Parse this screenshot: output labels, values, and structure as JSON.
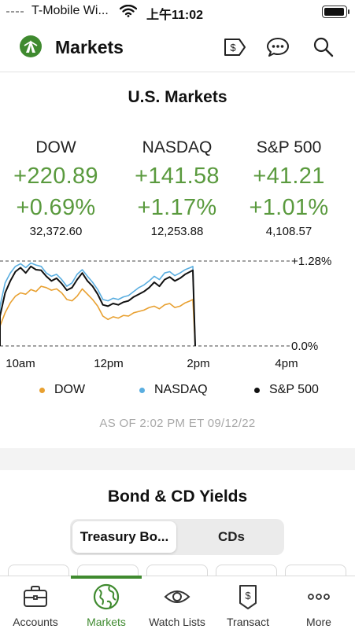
{
  "status_bar": {
    "carrier": "T-Mobile Wi...",
    "time": "上午11:02"
  },
  "header": {
    "title": "Markets",
    "icons": [
      "dollar-tag-icon",
      "chat-bubble-icon",
      "search-icon"
    ]
  },
  "markets": {
    "title": "U.S. Markets",
    "indices": [
      {
        "name": "DOW",
        "change": "+220.89",
        "percent": "+0.69%",
        "value": "32,372.60"
      },
      {
        "name": "NASDAQ",
        "change": "+141.58",
        "percent": "+1.17%",
        "value": "12,253.88"
      },
      {
        "name": "S&P 500",
        "change": "+41.21",
        "percent": "+1.01%",
        "value": "4,108.57"
      }
    ],
    "as_of": "AS OF 2:02 PM ET 09/12/22"
  },
  "chart_data": {
    "type": "line",
    "x_ticks": [
      "10am",
      "12pm",
      "2pm",
      "4pm"
    ],
    "y_labels": [
      "+1.28%",
      "0.0%"
    ],
    "ylim": [
      0,
      1.28
    ],
    "x_range": [
      "9:30am",
      "4pm"
    ],
    "grid": "dashed reference lines at +1.28% and 0.0%",
    "legend": "bottom",
    "series": [
      {
        "name": "DOW",
        "color": "#e8a030",
        "x": [
          0,
          4,
          8,
          12,
          16,
          20,
          24,
          28,
          32,
          36,
          40,
          44,
          48,
          52,
          56,
          60,
          64,
          68,
          72,
          76,
          80,
          84,
          88,
          92,
          96,
          100,
          104,
          108,
          112,
          116,
          120,
          124,
          128,
          132,
          136,
          140,
          144,
          148,
          150,
          151
        ],
        "y": [
          0.3,
          0.5,
          0.65,
          0.75,
          0.8,
          0.78,
          0.85,
          0.82,
          0.9,
          0.88,
          0.84,
          0.86,
          0.8,
          0.7,
          0.68,
          0.75,
          0.86,
          0.78,
          0.7,
          0.6,
          0.45,
          0.4,
          0.44,
          0.42,
          0.46,
          0.45,
          0.5,
          0.52,
          0.54,
          0.58,
          0.6,
          0.56,
          0.62,
          0.64,
          0.58,
          0.6,
          0.65,
          0.68,
          0.7,
          0.0
        ]
      },
      {
        "name": "NASDAQ",
        "color": "#5aaee0",
        "x": [
          0,
          4,
          8,
          12,
          16,
          20,
          24,
          28,
          32,
          36,
          40,
          44,
          48,
          52,
          56,
          60,
          64,
          68,
          72,
          76,
          80,
          84,
          88,
          92,
          96,
          100,
          104,
          108,
          112,
          116,
          120,
          124,
          128,
          132,
          136,
          140,
          144,
          148,
          150,
          151
        ],
        "y": [
          0.6,
          0.95,
          1.1,
          1.2,
          1.24,
          1.18,
          1.25,
          1.22,
          1.2,
          1.1,
          1.05,
          1.08,
          1.0,
          0.9,
          0.95,
          1.08,
          1.15,
          1.05,
          0.96,
          0.85,
          0.7,
          0.68,
          0.72,
          0.7,
          0.74,
          0.76,
          0.82,
          0.88,
          0.92,
          0.98,
          1.05,
          1.0,
          1.1,
          1.12,
          1.06,
          1.1,
          1.15,
          1.18,
          1.2,
          0.0
        ]
      },
      {
        "name": "S&P 500",
        "color": "#111111",
        "x": [
          0,
          4,
          8,
          12,
          16,
          20,
          24,
          28,
          32,
          36,
          40,
          44,
          48,
          52,
          56,
          60,
          64,
          68,
          72,
          76,
          80,
          84,
          88,
          92,
          96,
          100,
          104,
          108,
          112,
          116,
          120,
          124,
          128,
          132,
          136,
          140,
          144,
          148,
          150,
          151
        ],
        "y": [
          0.45,
          0.8,
          0.98,
          1.12,
          1.18,
          1.1,
          1.2,
          1.15,
          1.14,
          1.05,
          0.98,
          1.02,
          0.94,
          0.84,
          0.88,
          1.0,
          1.1,
          0.98,
          0.9,
          0.78,
          0.62,
          0.6,
          0.64,
          0.62,
          0.66,
          0.68,
          0.74,
          0.78,
          0.82,
          0.88,
          0.96,
          0.9,
          1.0,
          1.04,
          0.98,
          1.02,
          1.08,
          1.12,
          1.14,
          0.0
        ]
      }
    ]
  },
  "bonds": {
    "title": "Bond & CD Yields",
    "tabs": [
      {
        "label": "Treasury Bo...",
        "active": true
      },
      {
        "label": "CDs",
        "active": false
      }
    ]
  },
  "tab_bar": {
    "items": [
      {
        "label": "Accounts",
        "icon": "briefcase-icon",
        "active": false
      },
      {
        "label": "Markets",
        "icon": "globe-icon",
        "active": true
      },
      {
        "label": "Watch Lists",
        "icon": "eye-icon",
        "active": false
      },
      {
        "label": "Transact",
        "icon": "dollar-tag-icon",
        "active": false
      },
      {
        "label": "More",
        "icon": "more-dots-icon",
        "active": false
      }
    ]
  },
  "colors": {
    "accent": "#3f8a2f",
    "positive": "#5a9a3e",
    "muted": "#a8a8a8"
  }
}
